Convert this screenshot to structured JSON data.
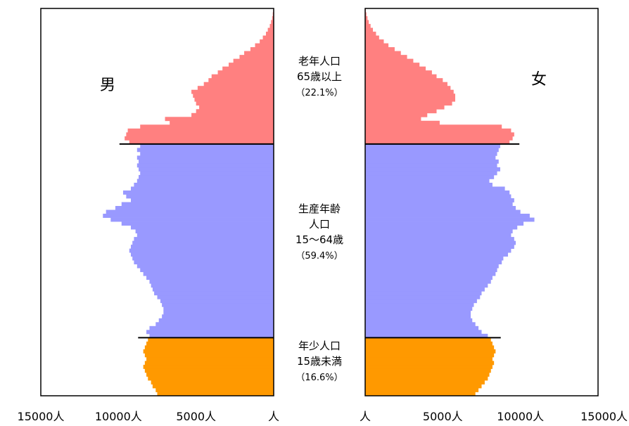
{
  "chart_data": {
    "type": "population-pyramid",
    "title": "",
    "male_label": "男",
    "female_label": "女",
    "x_unit": "人",
    "ages": [
      0,
      1,
      2,
      3,
      4,
      5,
      6,
      7,
      8,
      9,
      10,
      11,
      12,
      13,
      14,
      15,
      16,
      17,
      18,
      19,
      20,
      21,
      22,
      23,
      24,
      25,
      26,
      27,
      28,
      29,
      30,
      31,
      32,
      33,
      34,
      35,
      36,
      37,
      38,
      39,
      40,
      41,
      42,
      43,
      44,
      45,
      46,
      47,
      48,
      49,
      50,
      51,
      52,
      53,
      54,
      55,
      56,
      57,
      58,
      59,
      60,
      61,
      62,
      63,
      64,
      65,
      66,
      67,
      68,
      69,
      70,
      71,
      72,
      73,
      74,
      75,
      76,
      77,
      78,
      79,
      80,
      81,
      82,
      83,
      84,
      85,
      86,
      87,
      88,
      89,
      90,
      91,
      92,
      93,
      94,
      95,
      96,
      97,
      98,
      99
    ],
    "male_ticks": [
      {
        "value": 15000,
        "label": "15000人"
      },
      {
        "value": 10000,
        "label": "10000人"
      },
      {
        "value": 5000,
        "label": "5000人"
      },
      {
        "value": 0,
        "label": "人"
      }
    ],
    "female_ticks": [
      {
        "value": 0,
        "label": "人"
      },
      {
        "value": 5000,
        "label": "5000人"
      },
      {
        "value": 10000,
        "label": "10000人"
      },
      {
        "value": 15000,
        "label": "15000人"
      }
    ],
    "xlim": [
      0,
      15000
    ],
    "groups": [
      {
        "lines": [
          "老年人口",
          "65歳以上",
          "（22.1%）"
        ],
        "color": "#ff8080",
        "age_range": [
          65,
          99
        ]
      },
      {
        "lines": [
          "生産年齢",
          "人口",
          "15～64歳",
          "（59.4%）"
        ],
        "color": "#9999ff",
        "age_range": [
          15,
          64
        ]
      },
      {
        "lines": [
          "年少人口",
          "15歳未満",
          "（16.6%）"
        ],
        "color": "#ff9900",
        "age_range": [
          0,
          14
        ]
      }
    ],
    "series": [
      {
        "name": "男",
        "values": [
          7500,
          7600,
          7800,
          7900,
          8100,
          8200,
          8300,
          8400,
          8300,
          8200,
          8300,
          8400,
          8300,
          8200,
          8100,
          8000,
          8200,
          8000,
          7600,
          7400,
          7200,
          7100,
          7100,
          7200,
          7300,
          7500,
          7700,
          7800,
          7900,
          8000,
          8200,
          8400,
          8600,
          8800,
          9000,
          9100,
          9200,
          9300,
          9200,
          9100,
          9000,
          8800,
          8900,
          9200,
          9800,
          10500,
          11000,
          10800,
          10200,
          9800,
          9200,
          9500,
          9700,
          9200,
          9000,
          8800,
          8700,
          8600,
          8700,
          8800,
          8700,
          8800,
          8600,
          8800,
          8600,
          9300,
          9600,
          9500,
          9400,
          8600,
          6700,
          7000,
          5300,
          5000,
          4800,
          5000,
          5100,
          5200,
          5300,
          4900,
          4500,
          4200,
          4000,
          3600,
          3300,
          2900,
          2600,
          2200,
          1900,
          1500,
          1200,
          900,
          700,
          500,
          380,
          250,
          170,
          100,
          60,
          30
        ]
      },
      {
        "name": "女",
        "values": [
          7100,
          7300,
          7500,
          7700,
          7900,
          8000,
          8100,
          8200,
          8300,
          8200,
          8300,
          8400,
          8300,
          8200,
          8100,
          7900,
          7500,
          7300,
          7100,
          6900,
          6800,
          6800,
          6900,
          7000,
          7200,
          7400,
          7500,
          7700,
          7900,
          8100,
          8200,
          8400,
          8500,
          8600,
          8800,
          8900,
          9200,
          9400,
          9600,
          9700,
          9600,
          9400,
          9500,
          9800,
          10200,
          10900,
          10600,
          10000,
          9700,
          9500,
          9600,
          9400,
          9300,
          9000,
          8200,
          8000,
          8300,
          8500,
          8700,
          8500,
          8600,
          8400,
          8500,
          8600,
          8700,
          9300,
          9500,
          9600,
          9400,
          8800,
          4800,
          3600,
          4000,
          4600,
          5100,
          5600,
          5800,
          5800,
          5700,
          5500,
          5300,
          5000,
          4600,
          4300,
          3900,
          3500,
          3100,
          2700,
          2300,
          1900,
          1500,
          1200,
          900,
          700,
          500,
          350,
          230,
          150,
          80,
          40
        ]
      }
    ]
  }
}
